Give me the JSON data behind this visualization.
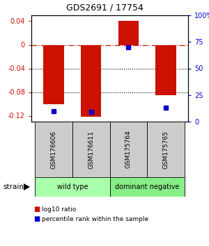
{
  "title": "GDS2691 / 17754",
  "samples": [
    "GSM176606",
    "GSM176611",
    "GSM175764",
    "GSM175765"
  ],
  "log10_ratios": [
    -0.1,
    -0.122,
    0.04,
    -0.085
  ],
  "percentile_ranks": [
    10.0,
    9.0,
    70.0,
    13.0
  ],
  "bar_color": "#cc1100",
  "dot_color": "#0000cc",
  "ylim_left": [
    -0.13,
    0.05
  ],
  "ylim_right": [
    0,
    100
  ],
  "yticks_left": [
    -0.12,
    -0.08,
    -0.04,
    0.0,
    0.04
  ],
  "yticks_right": [
    0,
    25,
    50,
    75,
    100
  ],
  "ytick_labels_left": [
    "-0.12",
    "-0.08",
    "-0.04",
    "0",
    "0.04"
  ],
  "ytick_labels_right": [
    "0",
    "25",
    "50",
    "75",
    "100%"
  ],
  "hline_zero_color": "#cc1100",
  "hline_dotted_color": "#000000",
  "strain_label": "strain",
  "legend_red": "log10 ratio",
  "legend_blue": "percentile rank within the sample",
  "bar_width": 0.55,
  "group_wt_color": "#aaffaa",
  "group_dn_color": "#88ee88",
  "sample_box_color": "#cccccc",
  "title_fontsize": 9,
  "tick_fontsize": 7,
  "label_fontsize": 6.5,
  "group_fontsize": 7,
  "legend_fontsize": 6.5,
  "strain_fontsize": 7.5
}
